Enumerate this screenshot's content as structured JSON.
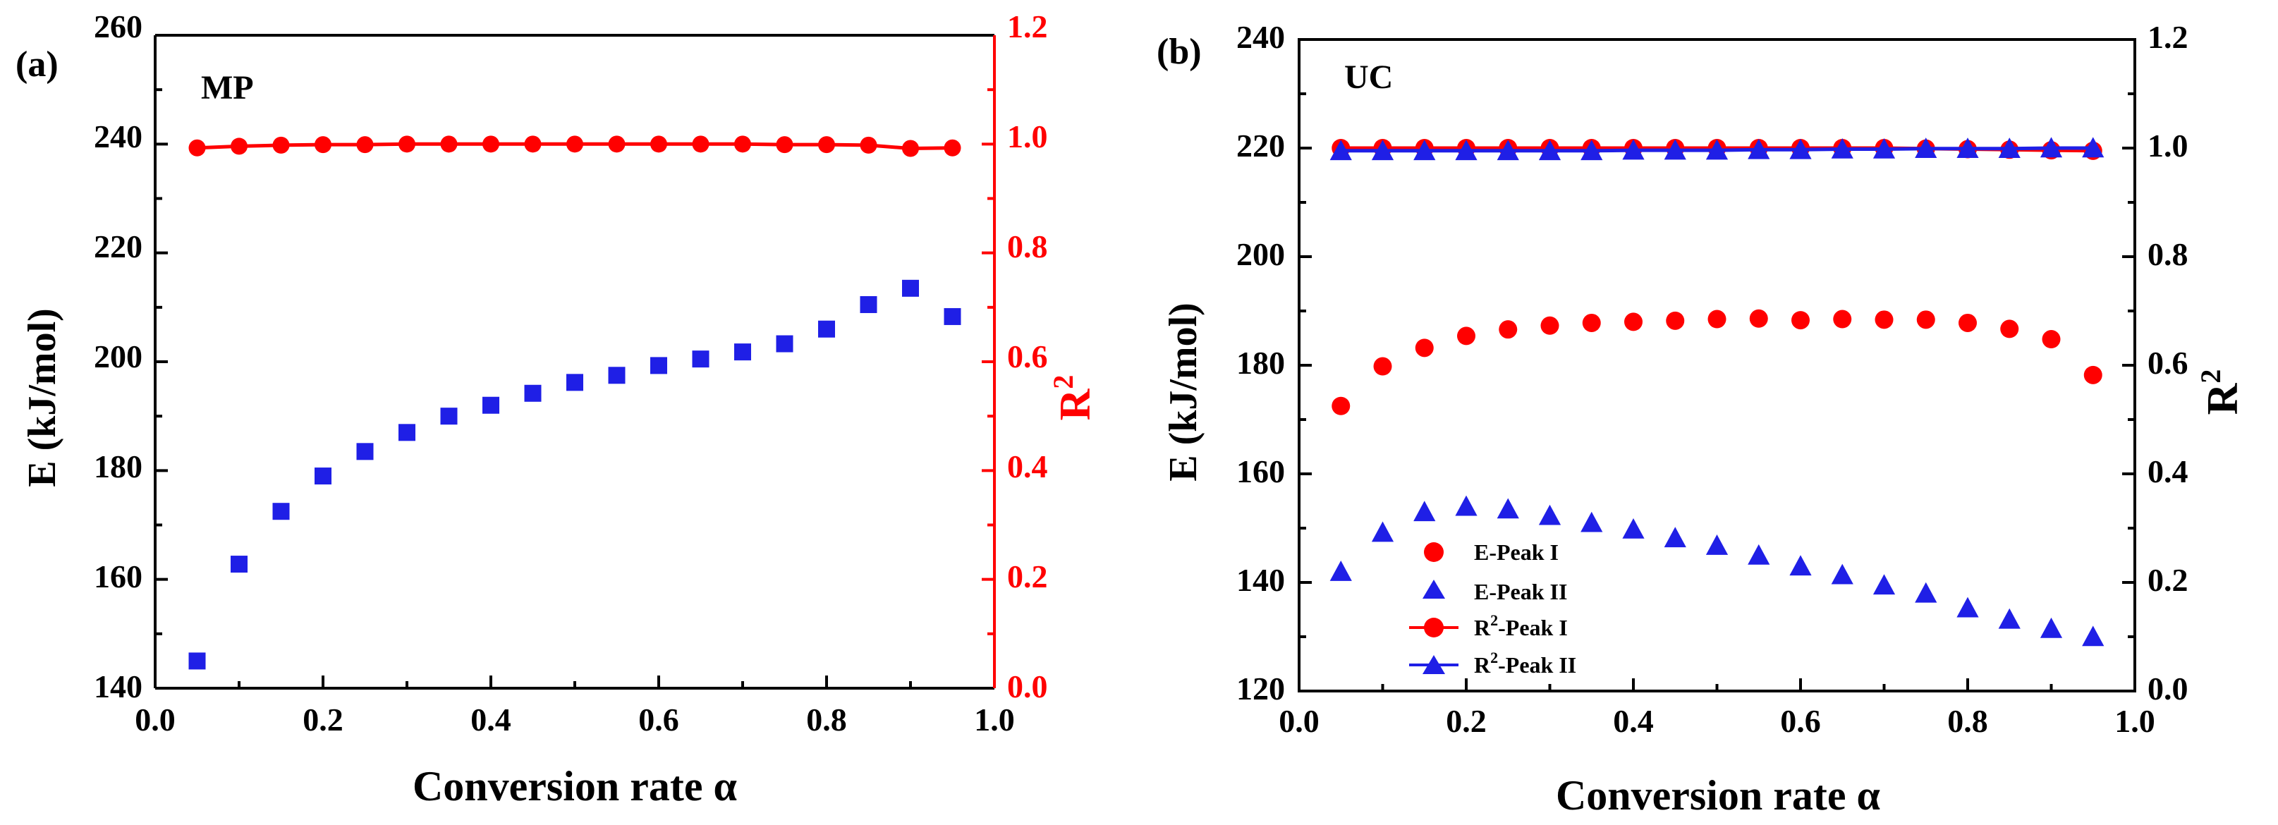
{
  "chart_data": [
    {
      "type": "scatter",
      "panel_label": "(a)",
      "title": "MP",
      "xlabel": "Conversion rate α",
      "ylabel": "E (kJ/mol)",
      "y2label_base": "R",
      "y2label_sup": "2",
      "xlim": [
        0.0,
        1.0
      ],
      "ylim": [
        140,
        260
      ],
      "y2lim": [
        0.0,
        1.2
      ],
      "xticks": [
        "0.0",
        "0.2",
        "0.4",
        "0.6",
        "0.8",
        "1.0"
      ],
      "yticks": [
        "140",
        "160",
        "180",
        "200",
        "220",
        "240",
        "260"
      ],
      "y2ticks": [
        "0.0",
        "0.2",
        "0.4",
        "0.6",
        "0.8",
        "1.0",
        "1.2"
      ],
      "grid": false,
      "series": [
        {
          "name": "E",
          "axis": "left",
          "marker": "square",
          "line": false,
          "color": "#1f1fe6",
          "x": [
            0.05,
            0.1,
            0.15,
            0.2,
            0.25,
            0.3,
            0.35,
            0.4,
            0.45,
            0.5,
            0.55,
            0.6,
            0.65,
            0.7,
            0.75,
            0.8,
            0.85,
            0.9,
            0.95
          ],
          "y": [
            145.0,
            162.8,
            172.5,
            179.0,
            183.5,
            187.0,
            190.0,
            192.0,
            194.2,
            196.2,
            197.5,
            199.3,
            200.5,
            201.8,
            203.3,
            206.0,
            210.5,
            213.5,
            208.3
          ]
        },
        {
          "name": "R²",
          "axis": "right",
          "marker": "circle",
          "line": true,
          "color": "#ff0000",
          "x": [
            0.05,
            0.1,
            0.15,
            0.2,
            0.25,
            0.3,
            0.35,
            0.4,
            0.45,
            0.5,
            0.55,
            0.6,
            0.65,
            0.7,
            0.75,
            0.8,
            0.85,
            0.9,
            0.95
          ],
          "y": [
            0.993,
            0.996,
            0.998,
            0.999,
            0.999,
            1.0,
            1.0,
            1.0,
            1.0,
            1.0,
            1.0,
            1.0,
            1.0,
            1.0,
            0.999,
            0.999,
            0.998,
            0.992,
            0.993
          ]
        }
      ]
    },
    {
      "type": "scatter",
      "panel_label": "(b)",
      "title": "UC",
      "xlabel": "Conversion rate α",
      "ylabel": "E (kJ/mol)",
      "y2label_base": "R",
      "y2label_sup": "2",
      "xlim": [
        0.0,
        1.0
      ],
      "ylim": [
        120,
        240
      ],
      "y2lim": [
        0.0,
        1.2
      ],
      "xticks": [
        "0.0",
        "0.2",
        "0.4",
        "0.6",
        "0.8",
        "1.0"
      ],
      "yticks": [
        "120",
        "140",
        "160",
        "180",
        "200",
        "220",
        "240"
      ],
      "y2ticks": [
        "0.0",
        "0.2",
        "0.4",
        "0.6",
        "0.8",
        "1.0",
        "1.2"
      ],
      "grid": false,
      "legend": {
        "placement": "lower-left",
        "entries": [
          {
            "base": "E-Peak I",
            "sup": "",
            "rest": ""
          },
          {
            "base": "E-Peak II",
            "sup": "",
            "rest": ""
          },
          {
            "base": "R",
            "sup": "2",
            "rest": "-Peak I"
          },
          {
            "base": "R",
            "sup": "2",
            "rest": "-Peak II"
          }
        ]
      },
      "series": [
        {
          "name": "E-Peak I",
          "axis": "left",
          "marker": "circle",
          "line": false,
          "color": "#ff0000",
          "x": [
            0.05,
            0.1,
            0.15,
            0.2,
            0.25,
            0.3,
            0.35,
            0.4,
            0.45,
            0.5,
            0.55,
            0.6,
            0.65,
            0.7,
            0.75,
            0.8,
            0.85,
            0.9,
            0.95
          ],
          "y": [
            172.5,
            179.8,
            183.2,
            185.4,
            186.6,
            187.3,
            187.8,
            188.0,
            188.2,
            188.5,
            188.6,
            188.3,
            188.5,
            188.4,
            188.4,
            187.8,
            186.7,
            184.8,
            178.2
          ]
        },
        {
          "name": "E-Peak II",
          "axis": "left",
          "marker": "triangle",
          "line": false,
          "color": "#1f1fe6",
          "x": [
            0.05,
            0.1,
            0.15,
            0.2,
            0.25,
            0.3,
            0.35,
            0.4,
            0.45,
            0.5,
            0.55,
            0.6,
            0.65,
            0.7,
            0.75,
            0.8,
            0.85,
            0.9,
            0.95
          ],
          "y": [
            142.0,
            149.2,
            153.0,
            154.0,
            153.5,
            152.3,
            151.0,
            149.8,
            148.2,
            146.8,
            145.0,
            143.0,
            141.4,
            139.5,
            138.0,
            135.3,
            133.2,
            131.5,
            130.0
          ]
        },
        {
          "name": "R²-Peak I",
          "axis": "right",
          "marker": "circle",
          "line": true,
          "color": "#ff0000",
          "x": [
            0.05,
            0.1,
            0.15,
            0.2,
            0.25,
            0.3,
            0.35,
            0.4,
            0.45,
            0.5,
            0.55,
            0.6,
            0.65,
            0.7,
            0.75,
            0.8,
            0.85,
            0.9,
            0.95
          ],
          "y": [
            1.0,
            1.0,
            1.0,
            1.0,
            1.0,
            1.0,
            1.0,
            1.0,
            1.0,
            1.0,
            1.0,
            1.0,
            1.0,
            1.0,
            0.999,
            0.998,
            0.997,
            0.996,
            0.995
          ]
        },
        {
          "name": "R²-Peak II",
          "axis": "right",
          "marker": "triangle",
          "line": true,
          "color": "#1f1fe6",
          "x": [
            0.05,
            0.1,
            0.15,
            0.2,
            0.25,
            0.3,
            0.35,
            0.4,
            0.45,
            0.5,
            0.55,
            0.6,
            0.65,
            0.7,
            0.75,
            0.8,
            0.85,
            0.9,
            0.95
          ],
          "y": [
            0.995,
            0.995,
            0.995,
            0.995,
            0.995,
            0.995,
            0.995,
            0.996,
            0.996,
            0.996,
            0.997,
            0.997,
            0.998,
            0.998,
            0.999,
            0.999,
            0.999,
            1.0,
            1.0
          ]
        }
      ]
    }
  ]
}
